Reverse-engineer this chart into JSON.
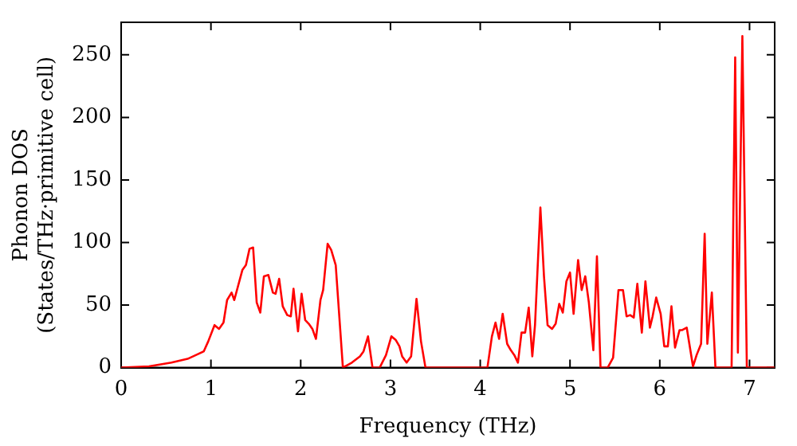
{
  "chart_data": {
    "type": "line",
    "xlabel": "Frequency (THz)",
    "ylabel": "Phonon DOS\n(States/THz·primitive cell)",
    "xlim": [
      0,
      7.28
    ],
    "ylim": [
      0,
      276
    ],
    "xticks": [
      0,
      1,
      2,
      3,
      4,
      5,
      6,
      7
    ],
    "yticks": [
      0,
      50,
      100,
      150,
      200,
      250
    ],
    "grid": false,
    "legend": false,
    "marker": "none",
    "line_style": "solid",
    "series": [
      {
        "color": "#ff0000",
        "x": [
          0,
          0.31,
          0.56,
          0.74,
          0.86,
          0.92,
          0.97,
          1.04,
          1.09,
          1.14,
          1.18,
          1.23,
          1.26,
          1.35,
          1.39,
          1.43,
          1.47,
          1.51,
          1.55,
          1.59,
          1.64,
          1.69,
          1.72,
          1.76,
          1.8,
          1.85,
          1.89,
          1.92,
          1.97,
          2.01,
          2.05,
          2.09,
          2.13,
          2.17,
          2.22,
          2.25,
          2.3,
          2.34,
          2.39,
          2.47,
          2.57,
          2.66,
          2.7,
          2.75,
          2.8,
          2.88,
          2.95,
          3.01,
          3.06,
          3.1,
          3.13,
          3.18,
          3.23,
          3.29,
          3.34,
          3.39,
          3.7,
          4.08,
          4.13,
          4.17,
          4.21,
          4.25,
          4.3,
          4.34,
          4.38,
          4.42,
          4.46,
          4.5,
          4.54,
          4.58,
          4.61,
          4.67,
          4.71,
          4.75,
          4.8,
          4.84,
          4.88,
          4.92,
          4.96,
          5,
          5.04,
          5.09,
          5.13,
          5.17,
          5.21,
          5.26,
          5.3,
          5.34,
          5.42,
          5.48,
          5.54,
          5.59,
          5.63,
          5.67,
          5.71,
          5.75,
          5.8,
          5.84,
          5.89,
          5.92,
          5.96,
          6.01,
          6.05,
          6.09,
          6.13,
          6.17,
          6.22,
          6.25,
          6.3,
          6.37,
          6.41,
          6.46,
          6.5,
          6.53,
          6.58,
          6.62,
          6.8,
          6.84,
          6.87,
          6.92,
          6.97,
          7.28
        ],
        "values": [
          0,
          1,
          4,
          7,
          11,
          13,
          21,
          34,
          31,
          36,
          54,
          60,
          54,
          78,
          82,
          95,
          96,
          52,
          44,
          73,
          74,
          60,
          59,
          71,
          49,
          42,
          41,
          63,
          29,
          59,
          38,
          35,
          31,
          23,
          54,
          62,
          99,
          94,
          82,
          0,
          4,
          9,
          13,
          25,
          0,
          0,
          10,
          25,
          22,
          17,
          9,
          4,
          9,
          55,
          21,
          0,
          0,
          0,
          25,
          36,
          23,
          43,
          19,
          14,
          10,
          4,
          28,
          28,
          48,
          9,
          34,
          128,
          73,
          34,
          31,
          35,
          51,
          44,
          69,
          76,
          43,
          86,
          62,
          73,
          52,
          14,
          89,
          0,
          0,
          8,
          62,
          62,
          41,
          42,
          40,
          67,
          28,
          69,
          32,
          41,
          56,
          43,
          17,
          17,
          49,
          16,
          30,
          30,
          32,
          1,
          10,
          19,
          107,
          19,
          60,
          0,
          0,
          248,
          12,
          265,
          0,
          0
        ]
      }
    ]
  }
}
